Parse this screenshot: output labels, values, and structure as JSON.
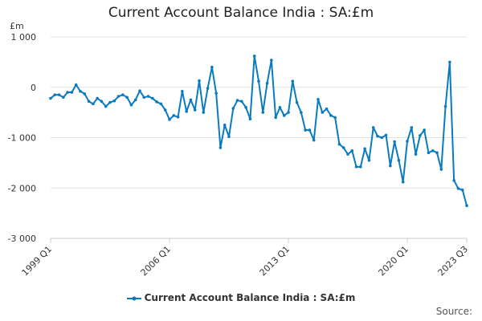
{
  "chart_data": {
    "type": "line",
    "title": "Current Account Balance India : SA:£m",
    "ylabel": "£m",
    "xlabel": "",
    "ylim": [
      -3000,
      1000
    ],
    "yticks": [
      1000,
      0,
      -1000,
      -2000,
      -3000
    ],
    "ytick_labels": [
      "1 000",
      "0",
      "-1 000",
      "-2 000",
      "-3 000"
    ],
    "xtick_labels": [
      "1999 Q1",
      "2006 Q1",
      "2013 Q1",
      "2020 Q1",
      "2023 Q3"
    ],
    "xtick_positions": [
      0,
      28,
      56,
      84,
      98
    ],
    "grid": "horizontal",
    "legend_position": "bottom",
    "series": [
      {
        "name": "Current Account Balance India : SA:£m",
        "color": "#0b7bbf",
        "values": [
          -220,
          -150,
          -150,
          -200,
          -100,
          -100,
          50,
          -80,
          -130,
          -280,
          -330,
          -220,
          -280,
          -380,
          -300,
          -270,
          -180,
          -150,
          -200,
          -350,
          -250,
          -70,
          -200,
          -180,
          -220,
          -290,
          -330,
          -450,
          -640,
          -560,
          -590,
          -80,
          -480,
          -250,
          -450,
          130,
          -500,
          -20,
          400,
          -120,
          -1200,
          -750,
          -980,
          -420,
          -260,
          -280,
          -400,
          -630,
          620,
          120,
          -500,
          80,
          540,
          -600,
          -400,
          -560,
          -500,
          120,
          -300,
          -500,
          -850,
          -850,
          -1050,
          -240,
          -500,
          -430,
          -560,
          -600,
          -1130,
          -1200,
          -1330,
          -1260,
          -1580,
          -1580,
          -1220,
          -1450,
          -800,
          -970,
          -1000,
          -950,
          -1560,
          -1080,
          -1450,
          -1880,
          -1070,
          -800,
          -1330,
          -960,
          -850,
          -1300,
          -1260,
          -1300,
          -1630,
          -380,
          500,
          -1850,
          -2010,
          -2040,
          -2350
        ]
      }
    ]
  },
  "legend": {
    "label": "Current Account Balance India : SA:£m"
  },
  "source": {
    "label": "Source:"
  }
}
